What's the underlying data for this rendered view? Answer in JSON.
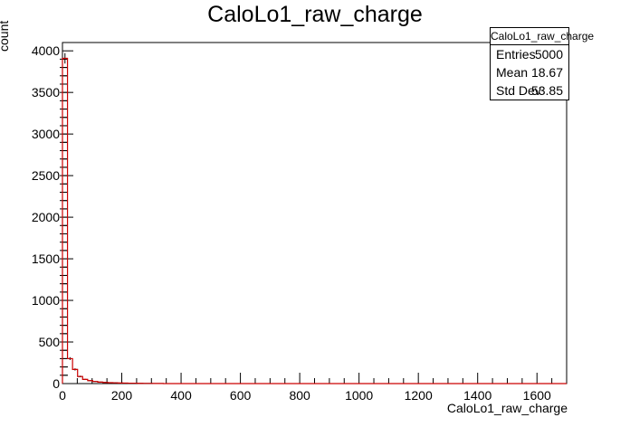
{
  "chart_data": {
    "type": "bar",
    "title": "CaloLo1_raw_charge",
    "xlabel": "CaloLo1_raw_charge",
    "ylabel": "count",
    "xlim": [
      0,
      1700
    ],
    "ylim": [
      0,
      4100
    ],
    "bin_width": 17,
    "x_ticks": [
      0,
      200,
      400,
      600,
      800,
      1000,
      1200,
      1400,
      1600
    ],
    "y_ticks": [
      0,
      500,
      1000,
      1500,
      2000,
      2500,
      3000,
      3500,
      4000
    ],
    "bins": [
      {
        "x": 0,
        "value": 3910
      },
      {
        "x": 17,
        "value": 300
      },
      {
        "x": 34,
        "value": 170
      },
      {
        "x": 51,
        "value": 85
      },
      {
        "x": 68,
        "value": 50
      },
      {
        "x": 85,
        "value": 35
      },
      {
        "x": 102,
        "value": 25
      },
      {
        "x": 119,
        "value": 18
      },
      {
        "x": 136,
        "value": 14
      },
      {
        "x": 153,
        "value": 11
      },
      {
        "x": 170,
        "value": 9
      },
      {
        "x": 187,
        "value": 7
      },
      {
        "x": 204,
        "value": 6
      },
      {
        "x": 221,
        "value": 5
      },
      {
        "x": 238,
        "value": 5
      },
      {
        "x": 255,
        "value": 3
      },
      {
        "x": 272,
        "value": 2
      },
      {
        "x": 289,
        "value": 2
      },
      {
        "x": 306,
        "value": 1
      },
      {
        "x": 323,
        "value": 1
      }
    ],
    "colors": {
      "line": "#cc0000",
      "error_bar": "#000000",
      "axis": "#000000"
    }
  },
  "stats_box": {
    "title": "CaloLo1_raw_charge",
    "entries_label": "Entries",
    "entries_value": "5000",
    "mean_label": "Mean",
    "mean_value": "18.67",
    "stddev_label": "Std Dev",
    "stddev_value": "53.85"
  }
}
